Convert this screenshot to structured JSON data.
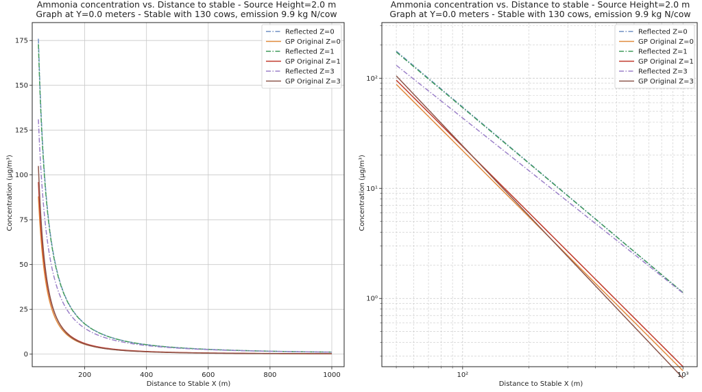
{
  "colors": {
    "blue": "#6f8fc4",
    "orange": "#e08a3c",
    "green": "#3f9a5a",
    "red": "#c0392b",
    "purple": "#9a7fc8",
    "brown": "#8c564b",
    "grid": "#c8c8c8"
  },
  "chart_data": [
    {
      "type": "line",
      "title": "Ammonia concentration vs. Distance to stable - Source Height=2.0 m",
      "subtitle": "Graph at Y=0.0 meters - Stable with 130 cows, emission 9.9 kg N/cow",
      "xlabel": "Distance to Stable X (m)",
      "ylabel": "Concentration (μg/m³)",
      "xscale": "linear",
      "yscale": "linear",
      "xlim": [
        30,
        1040
      ],
      "ylim": [
        -7,
        185
      ],
      "xticks": [
        200,
        400,
        600,
        800,
        1000
      ],
      "xtick_labels": [
        "200",
        "400",
        "600",
        "800",
        "1000"
      ],
      "yticks": [
        0,
        25,
        50,
        75,
        100,
        125,
        150,
        175
      ],
      "ytick_labels": [
        "0",
        "25",
        "50",
        "75",
        "100",
        "125",
        "150",
        "175"
      ],
      "grid": true,
      "legend_position": "top-right",
      "series": [
        {
          "name": "Reflected Z=0",
          "color_key": "blue",
          "style": "dashdot",
          "A": 176,
          "p": 1.686
        },
        {
          "name": "GP Original Z=0",
          "color_key": "orange",
          "style": "solid",
          "A": 88,
          "p": 2.0
        },
        {
          "name": "Reflected Z=1",
          "color_key": "green",
          "style": "dashdot",
          "A": 173,
          "p": 1.679
        },
        {
          "name": "GP Original Z=1",
          "color_key": "red",
          "style": "solid",
          "A": 96,
          "p": 2.0
        },
        {
          "name": "Reflected Z=3",
          "color_key": "purple",
          "style": "dashdot",
          "A": 131,
          "p": 1.59
        },
        {
          "name": "GP Original Z=3",
          "color_key": "brown",
          "style": "solid",
          "A": 105,
          "p": 2.11
        }
      ],
      "x_range": [
        50,
        1000
      ]
    },
    {
      "type": "line",
      "title": "Ammonia concentration vs. Distance to stable - Source Height=2.0 m",
      "subtitle": "Graph at Y=0.0 meters - Stable with 130 cows, emission 9.9 kg N/cow",
      "xlabel": "Distance to Stable X (m)",
      "ylabel": "Concentration (μg/m³)",
      "xscale": "log",
      "yscale": "log",
      "xlim": [
        43,
        1160
      ],
      "ylim": [
        0.24,
        320
      ],
      "xticks": [
        100,
        1000
      ],
      "xtick_labels": [
        "10²",
        "10³"
      ],
      "yticks": [
        1,
        10,
        100
      ],
      "ytick_labels": [
        "10⁰",
        "10¹",
        "10²"
      ],
      "grid": true,
      "legend_position": "top-right",
      "series": [
        {
          "name": "Reflected Z=0",
          "color_key": "blue",
          "style": "dashdot",
          "A": 176,
          "p": 1.686
        },
        {
          "name": "GP Original Z=0",
          "color_key": "orange",
          "style": "solid",
          "A": 88,
          "p": 2.0
        },
        {
          "name": "Reflected Z=1",
          "color_key": "green",
          "style": "dashdot",
          "A": 173,
          "p": 1.679
        },
        {
          "name": "GP Original Z=1",
          "color_key": "red",
          "style": "solid",
          "A": 96,
          "p": 2.0
        },
        {
          "name": "Reflected Z=3",
          "color_key": "purple",
          "style": "dashdot",
          "A": 131,
          "p": 1.59
        },
        {
          "name": "GP Original Z=3",
          "color_key": "brown",
          "style": "solid",
          "A": 105,
          "p": 2.11
        }
      ],
      "x_range": [
        50,
        1000
      ]
    }
  ]
}
